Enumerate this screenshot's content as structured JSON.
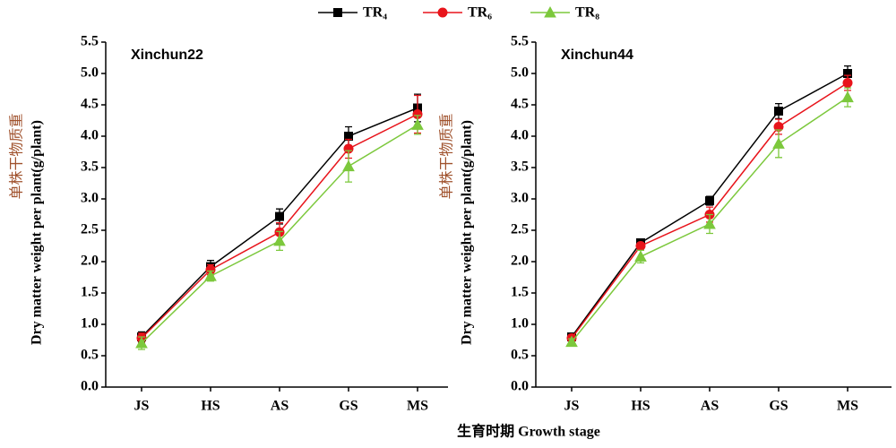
{
  "chart_data": [
    {
      "type": "line",
      "title": "Xinchun22",
      "ylabel_cn": "单株干物质重",
      "ylabel": "Dry matter weight per plant(g/plant)",
      "xlabel": "生育时期  Growth stage",
      "categories": [
        "JS",
        "HS",
        "AS",
        "GS",
        "MS"
      ],
      "ylim": [
        0,
        5.5
      ],
      "yticks": [
        {
          "value": 0,
          "label": "0.0"
        },
        {
          "value": 0.5,
          "label": "0.5"
        },
        {
          "value": 1,
          "label": "1.0"
        },
        {
          "value": 1.5,
          "label": "1.5"
        },
        {
          "value": 2,
          "label": "2.0"
        },
        {
          "value": 2.5,
          "label": "2.5"
        },
        {
          "value": 3,
          "label": "3.0"
        },
        {
          "value": 3.5,
          "label": "3.5"
        },
        {
          "value": 4,
          "label": "4.0"
        },
        {
          "value": 4.5,
          "label": "4.5"
        },
        {
          "value": 5,
          "label": "5.0"
        },
        {
          "value": 5.5,
          "label": "5.5"
        }
      ],
      "series": [
        {
          "name": "TR₄",
          "color": "#000000",
          "marker": "square",
          "values": [
            0.8,
            1.92,
            2.72,
            4.0,
            4.45
          ],
          "errors": [
            0.08,
            0.1,
            0.12,
            0.15,
            0.22
          ]
        },
        {
          "name": "TR₆",
          "color": "#e8141b",
          "marker": "circle",
          "values": [
            0.78,
            1.87,
            2.47,
            3.8,
            4.35
          ],
          "errors": [
            0.08,
            0.08,
            0.15,
            0.15,
            0.3
          ]
        },
        {
          "name": "TR₈",
          "color": "#7cc83c",
          "marker": "triangle",
          "values": [
            0.7,
            1.77,
            2.33,
            3.52,
            4.18
          ],
          "errors": [
            0.1,
            0.08,
            0.15,
            0.25,
            0.15
          ]
        }
      ]
    },
    {
      "type": "line",
      "title": "Xinchun44",
      "ylabel_cn": "单株干物质重",
      "ylabel": "Dry matter weight per plant(g/plant)",
      "categories": [
        "JS",
        "HS",
        "AS",
        "GS",
        "MS"
      ],
      "ylim": [
        0,
        5.5
      ],
      "yticks": [
        {
          "value": 0,
          "label": "0.0"
        },
        {
          "value": 0.5,
          "label": "0.5"
        },
        {
          "value": 1,
          "label": "1.0"
        },
        {
          "value": 1.5,
          "label": "1.5"
        },
        {
          "value": 2,
          "label": "2.0"
        },
        {
          "value": 2.5,
          "label": "2.5"
        },
        {
          "value": 3,
          "label": "3.0"
        },
        {
          "value": 3.5,
          "label": "3.5"
        },
        {
          "value": 4,
          "label": "4.0"
        },
        {
          "value": 4.5,
          "label": "4.5"
        },
        {
          "value": 5,
          "label": "5.0"
        },
        {
          "value": 5.5,
          "label": "5.5"
        }
      ],
      "series": [
        {
          "name": "TR₄",
          "color": "#000000",
          "marker": "square",
          "values": [
            0.8,
            2.3,
            2.97,
            4.4,
            5.0
          ],
          "errors": [
            0.05,
            0.05,
            0.07,
            0.12,
            0.12
          ]
        },
        {
          "name": "TR₆",
          "color": "#e8141b",
          "marker": "circle",
          "values": [
            0.78,
            2.25,
            2.75,
            4.15,
            4.85
          ],
          "errors": [
            0.05,
            0.05,
            0.12,
            0.12,
            0.12
          ]
        },
        {
          "name": "TR₈",
          "color": "#7cc83c",
          "marker": "triangle",
          "values": [
            0.72,
            2.08,
            2.6,
            3.88,
            4.62
          ],
          "errors": [
            0.05,
            0.1,
            0.15,
            0.22,
            0.15
          ]
        }
      ]
    }
  ]
}
